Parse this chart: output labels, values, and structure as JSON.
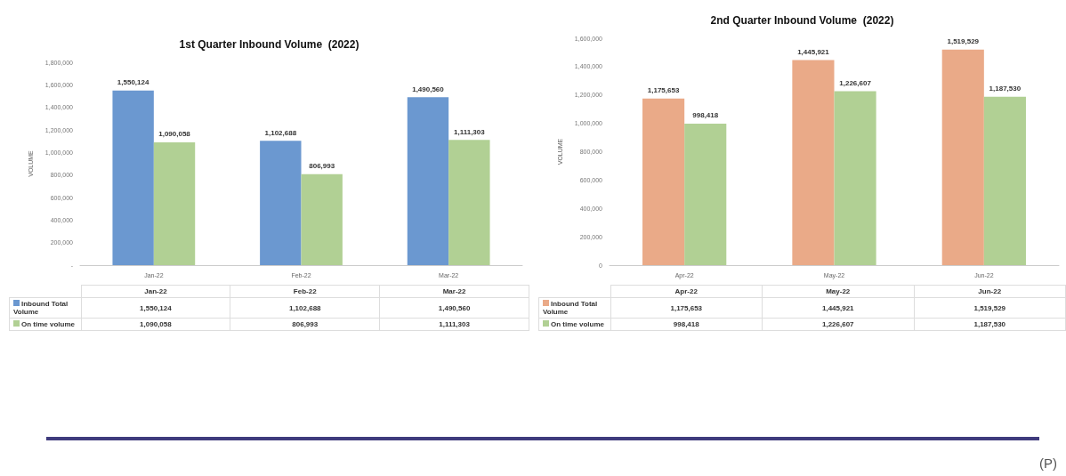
{
  "chart_data": [
    {
      "type": "bar",
      "title": "1st Quarter Inbound Volume  (2022)",
      "ylabel": "VOLUME",
      "categories": [
        "Jan-22",
        "Feb-22",
        "Mar-22"
      ],
      "series": [
        {
          "name": "Inbound Total Volume",
          "color": "#6b98d0",
          "values": [
            1550124,
            1102688,
            1490560
          ],
          "value_labels": [
            "1,550,124",
            "1,102,688",
            "1,490,560"
          ]
        },
        {
          "name": "On time volume",
          "color": "#b1d094",
          "values": [
            1090058,
            806993,
            1111303
          ],
          "value_labels": [
            "1,090,058",
            "806,993",
            "1,111,303"
          ]
        }
      ],
      "ylim": [
        0,
        1800000
      ],
      "yticks": [
        {
          "value": 0,
          "label": "-"
        },
        {
          "value": 200000,
          "label": "200,000"
        },
        {
          "value": 400000,
          "label": "400,000"
        },
        {
          "value": 600000,
          "label": "600,000"
        },
        {
          "value": 800000,
          "label": "800,000"
        },
        {
          "value": 1000000,
          "label": "1,000,000"
        },
        {
          "value": 1200000,
          "label": "1,200,000"
        },
        {
          "value": 1400000,
          "label": "1,400,000"
        },
        {
          "value": 1600000,
          "label": "1,600,000"
        },
        {
          "value": 1800000,
          "label": "1,800,000"
        }
      ],
      "legend": "bottom"
    },
    {
      "type": "bar",
      "title": "2nd Quarter Inbound Volume  (2022)",
      "ylabel": "VOLUME",
      "categories": [
        "Apr-22",
        "May-22",
        "Jun-22"
      ],
      "series": [
        {
          "name": "Inbound Total Volume",
          "color": "#eaaa88",
          "values": [
            1175653,
            1445921,
            1519529
          ],
          "value_labels": [
            "1,175,653",
            "1,445,921",
            "1,519,529"
          ]
        },
        {
          "name": "On time volume",
          "color": "#b1d094",
          "values": [
            998418,
            1226607,
            1187530
          ],
          "value_labels": [
            "998,418",
            "1,226,607",
            "1,187,530"
          ]
        }
      ],
      "ylim": [
        0,
        1600000
      ],
      "yticks": [
        0,
        {
          "value": 200000,
          "label": "200,000"
        },
        {
          "value": 400000,
          "label": "400,000"
        },
        {
          "value": 600000,
          "label": "600,000"
        },
        {
          "value": 800000,
          "label": "800,000"
        },
        {
          "value": 1000000,
          "label": "1,000,000"
        },
        {
          "value": 1200000,
          "label": "1,200,000"
        },
        {
          "value": 1400000,
          "label": "1,400,000"
        },
        {
          "value": 1600000,
          "label": "1,600,000"
        }
      ],
      "legend": "bottom",
      "annotations": [
        "(P)"
      ]
    }
  ]
}
